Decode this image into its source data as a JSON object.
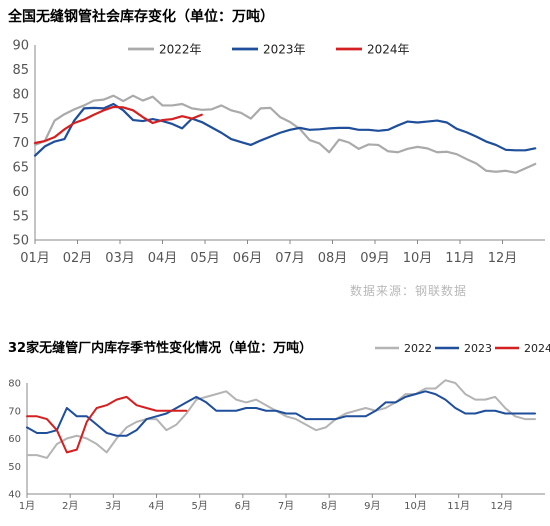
{
  "charts": {
    "top": {
      "title": "全国无缝钢管社会库存变化（单位：万吨）",
      "source": "数据来源：钢联数据",
      "chart_data": {
        "type": "line",
        "ylim": [
          50,
          90
        ],
        "yticks": [
          "50",
          "55",
          "60",
          "65",
          "70",
          "75",
          "80",
          "85",
          "90"
        ],
        "xlim": [
          0,
          52
        ],
        "xticks": [
          "01月",
          "02月",
          "03月",
          "04月",
          "05月",
          "06月",
          "07月",
          "08月",
          "09月",
          "10月",
          "11月",
          "12月"
        ],
        "legend_position": "top-center",
        "grid": false,
        "series": [
          {
            "name": "2022年",
            "color": "#aaaaaa",
            "values": [
              69.5,
              70.3,
              74.5,
              75.8,
              76.8,
              77.6,
              78.6,
              78.8,
              79.6,
              78.5,
              79.6,
              78.6,
              79.4,
              77.6,
              77.6,
              77.9,
              77.0,
              76.7,
              76.8,
              77.6,
              76.6,
              76.1,
              74.9,
              77.0,
              77.1,
              75.2,
              74.2,
              72.8,
              70.5,
              69.8,
              68.0,
              70.6,
              70.0,
              68.7,
              69.6,
              69.5,
              68.2,
              68.0,
              68.7,
              69.1,
              68.8,
              68.0,
              68.1,
              67.6,
              66.6,
              65.7,
              64.2,
              64.0,
              64.2,
              63.8,
              64.7,
              65.6
            ]
          },
          {
            "name": "2023年",
            "color": "#1f4e9a",
            "values": [
              67.3,
              69.2,
              70.2,
              70.7,
              74.5,
              77.0,
              77.1,
              77.0,
              77.9,
              76.6,
              74.6,
              74.4,
              74.8,
              74.4,
              73.8,
              72.9,
              74.9,
              74.2,
              73.1,
              72.0,
              70.7,
              70.1,
              69.5,
              70.4,
              71.2,
              72.0,
              72.6,
              73.0,
              72.6,
              72.7,
              72.9,
              73.0,
              73.0,
              72.6,
              72.6,
              72.4,
              72.6,
              73.5,
              74.3,
              74.1,
              74.3,
              74.5,
              74.1,
              72.8,
              72.1,
              71.2,
              70.2,
              69.5,
              68.5,
              68.4,
              68.4,
              68.8
            ]
          },
          {
            "name": "2024年",
            "color": "#d42020",
            "values": [
              69.9,
              70.3,
              71.1,
              72.7,
              74.0,
              74.7,
              75.7,
              76.6,
              77.3,
              77.2,
              76.6,
              75.2,
              74.0,
              74.6,
              74.8,
              75.4,
              74.9,
              75.7
            ]
          }
        ]
      }
    },
    "bottom": {
      "title": "32家无缝管厂内库存季节性变化情况（单位：万吨）",
      "chart_data": {
        "type": "line",
        "ylim": [
          40,
          80
        ],
        "yticks": [
          "40",
          "50",
          "60",
          "70",
          "80"
        ],
        "xlim": [
          0,
          52
        ],
        "xticks": [
          "1月",
          "2月",
          "3月",
          "4月",
          "5月",
          "6月",
          "7月",
          "8月",
          "9月",
          "10月",
          "11月",
          "12月"
        ],
        "legend_position": "top-right",
        "grid": false,
        "series": [
          {
            "name": "2022",
            "color": "#b4b4b4",
            "values": [
              54,
              54,
              53,
              58,
              60,
              61,
              60,
              58,
              55,
              60,
              64,
              66,
              67,
              67,
              63,
              65,
              69,
              74,
              75,
              76,
              77,
              74,
              73,
              74,
              72,
              70,
              68,
              67,
              65,
              63,
              64,
              67,
              69,
              70,
              71,
              70,
              71,
              73,
              76,
              76,
              78,
              78,
              81,
              80,
              76,
              74,
              74,
              75,
              71,
              68,
              67,
              67
            ]
          },
          {
            "name": "2023",
            "color": "#1f4e9a",
            "values": [
              64,
              62,
              62,
              63,
              71,
              68,
              68,
              65,
              62,
              61,
              61,
              63,
              67,
              68,
              69,
              71,
              73,
              75,
              73,
              70,
              70,
              70,
              71,
              71,
              70,
              70,
              69,
              69,
              67,
              67,
              67,
              67,
              68,
              68,
              68,
              70,
              73,
              73,
              75,
              76,
              77,
              76,
              74,
              71,
              69,
              69,
              70,
              70,
              69,
              69,
              69,
              69
            ]
          },
          {
            "name": "2024",
            "color": "#d42020",
            "values": [
              68,
              68,
              67,
              63,
              55,
              56,
              66,
              71,
              72,
              74,
              75,
              72,
              71,
              70,
              70,
              70,
              70
            ]
          }
        ]
      }
    }
  }
}
